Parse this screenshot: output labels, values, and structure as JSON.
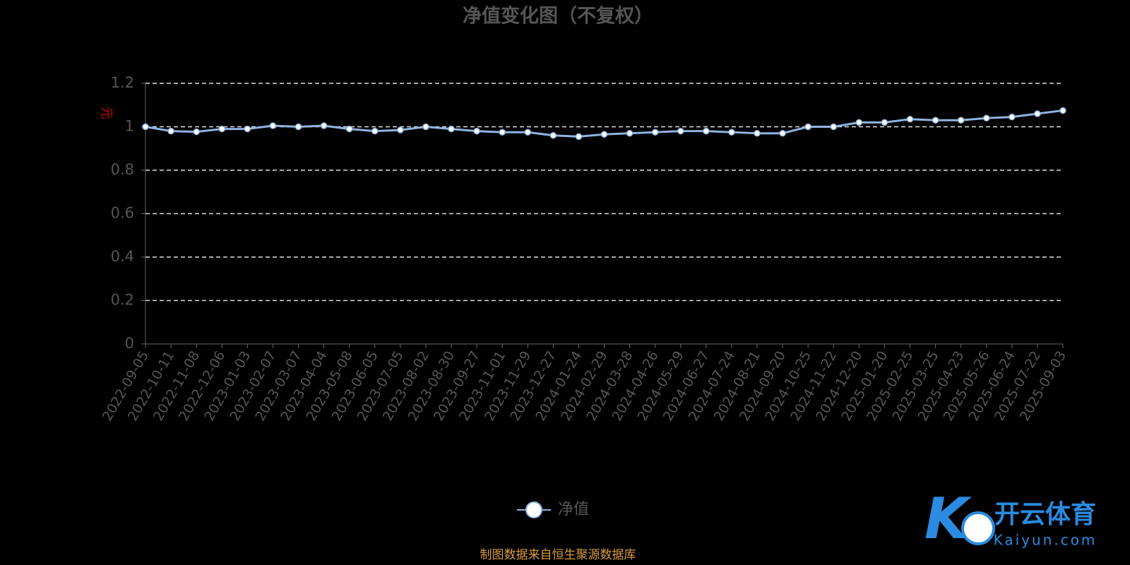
{
  "chart_data": {
    "type": "line",
    "title": "净值变化图（不复权）",
    "y_unit": "元",
    "categories": [
      "2022-09-05",
      "2022-10-11",
      "2022-11-08",
      "2022-12-06",
      "2023-01-03",
      "2023-02-07",
      "2023-03-07",
      "2023-04-04",
      "2023-05-08",
      "2023-06-05",
      "2023-07-05",
      "2023-08-02",
      "2023-08-30",
      "2023-09-27",
      "2023-11-01",
      "2023-11-29",
      "2023-12-27",
      "2024-01-24",
      "2024-02-29",
      "2024-03-28",
      "2024-04-26",
      "2024-05-29",
      "2024-06-27",
      "2024-07-24",
      "2024-08-21",
      "2024-09-20",
      "2024-10-25",
      "2024-11-22",
      "2024-12-20",
      "2025-01-20",
      "2025-02-25",
      "2025-03-25",
      "2025-04-23",
      "2025-05-26",
      "2025-06-24",
      "2025-07-22",
      "2025-09-03"
    ],
    "series": [
      {
        "name": "净值",
        "color": "#8fb3e0",
        "values": [
          1.0,
          0.98,
          0.977,
          0.99,
          0.99,
          1.005,
          1.0,
          1.005,
          0.99,
          0.98,
          0.985,
          1.0,
          0.99,
          0.98,
          0.975,
          0.975,
          0.96,
          0.955,
          0.965,
          0.97,
          0.975,
          0.98,
          0.98,
          0.975,
          0.97,
          0.97,
          1.0,
          1.0,
          1.02,
          1.02,
          1.035,
          1.03,
          1.03,
          1.04,
          1.045,
          1.06,
          1.075
        ]
      }
    ],
    "ylim": [
      0,
      1.2
    ],
    "yticks": [
      0,
      0.2,
      0.4,
      0.6,
      0.8,
      1,
      1.2
    ],
    "grid": true,
    "source": "制图数据来自恒生聚源数据库",
    "watermark": {
      "brand": "开云体育",
      "site": "Kaiyun.com"
    }
  }
}
